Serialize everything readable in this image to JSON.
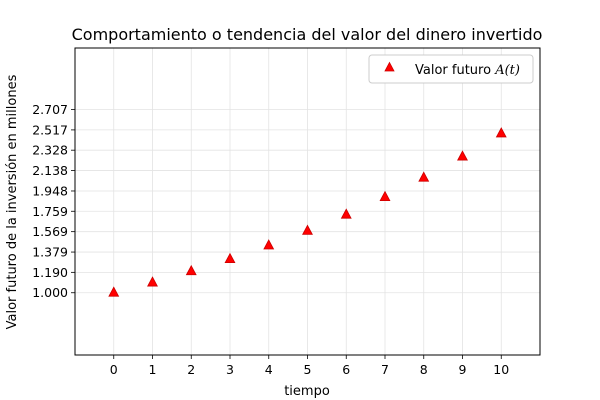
{
  "chart_data": {
    "type": "scatter",
    "title": "Comportamiento o tendencia del valor del dinero invertido",
    "xlabel": "tiempo",
    "ylabel": "Valor futuro de la inversión en millones",
    "x": [
      0,
      1,
      2,
      3,
      4,
      5,
      6,
      7,
      8,
      9,
      10
    ],
    "series": [
      {
        "name": "Valor futuro A(t)",
        "marker": "triangle-up",
        "color": "#ff0000",
        "values": [
          1.0,
          1.095,
          1.2,
          1.313,
          1.44,
          1.576,
          1.727,
          1.891,
          2.071,
          2.268,
          2.484
        ]
      }
    ],
    "x_ticks": [
      "0",
      "1",
      "2",
      "3",
      "4",
      "5",
      "6",
      "7",
      "8",
      "9",
      "10"
    ],
    "y_ticks": [
      "1.000",
      "1.190",
      "1.379",
      "1.569",
      "1.759",
      "1.948",
      "2.138",
      "2.328",
      "2.517",
      "2.707"
    ],
    "xlim": [
      -1,
      11
    ],
    "ylim": [
      0.42,
      3.28
    ],
    "grid": true,
    "legend_position": "top-right",
    "legend_label": {
      "prefix": "Valor futuro ",
      "math": "A(t)"
    }
  }
}
